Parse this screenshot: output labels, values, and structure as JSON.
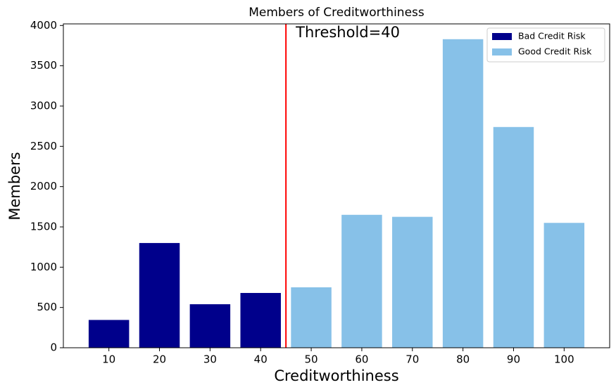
{
  "chart_data": {
    "type": "bar",
    "title": "Members of Creditworthiness",
    "xlabel": "Creditworthiness",
    "ylabel": "Members",
    "x": [
      10,
      20,
      30,
      40,
      50,
      60,
      70,
      80,
      90,
      100
    ],
    "series": [
      {
        "name": "Bad Credit Risk",
        "color": "#00008b",
        "values": [
          345,
          1300,
          540,
          680,
          null,
          null,
          null,
          null,
          null,
          null
        ]
      },
      {
        "name": "Good Credit Risk",
        "color": "#87c1e8",
        "values": [
          null,
          null,
          null,
          null,
          750,
          1650,
          1625,
          3830,
          2740,
          1550
        ]
      }
    ],
    "xlim": [
      1,
      109
    ],
    "xticks": [
      10,
      20,
      30,
      40,
      50,
      60,
      70,
      80,
      90,
      100
    ],
    "ylim": [
      0,
      4020
    ],
    "yticks": [
      0,
      500,
      1000,
      1500,
      2000,
      2500,
      3000,
      3500,
      4000
    ],
    "threshold": {
      "x": 45,
      "label": "Threshold=40",
      "color": "#ff0000"
    },
    "legend": "upper right"
  }
}
